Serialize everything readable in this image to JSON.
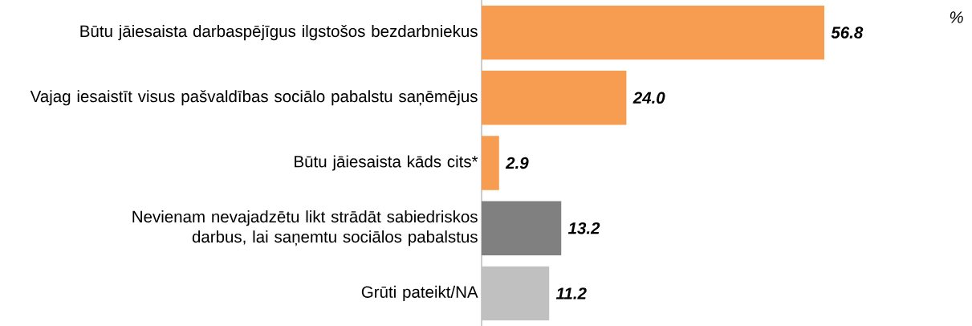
{
  "chart_data": {
    "type": "bar",
    "orientation": "horizontal",
    "categories": [
      "Būtu jāiesaista darbaspējīgus ilgstošos bezdarbniekus",
      "Vajag iesaistīt visus pašvaldības sociālo pabalstu saņēmējus",
      "Būtu jāiesaista kāds cits*",
      "Nevienam nevajadzētu likt strādāt sabiedriskos darbus, lai saņemtu sociālos pabalstus",
      "Grūti pateikt/NA"
    ],
    "values": [
      56.8,
      24.0,
      2.9,
      13.2,
      11.2
    ],
    "value_labels": [
      "56.8",
      "24.0",
      "2.9",
      "13.2",
      "11.2"
    ],
    "colors": [
      "#f79d51",
      "#f79d51",
      "#f79d51",
      "#808080",
      "#c0c0c0"
    ],
    "annotations": [
      "%"
    ]
  }
}
